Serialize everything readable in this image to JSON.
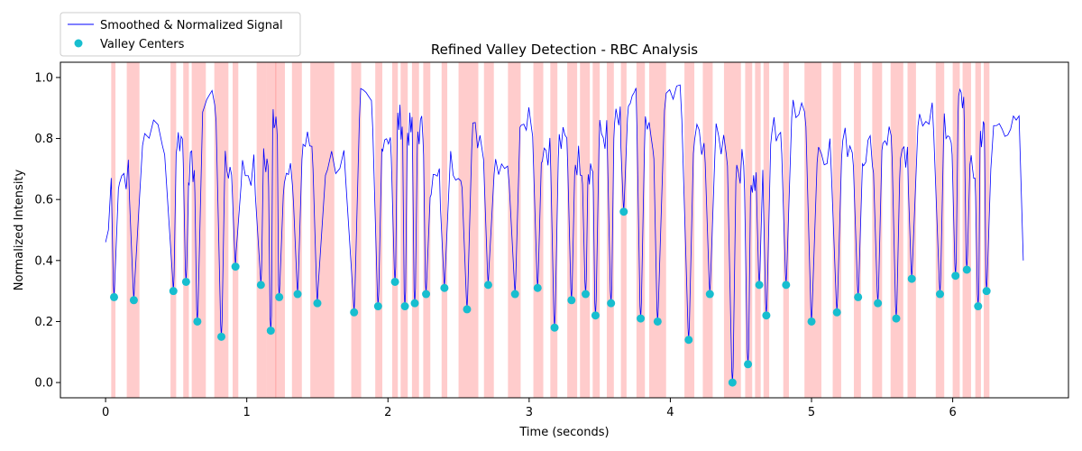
{
  "chart_data": {
    "type": "line",
    "title": "Refined Valley Detection - RBC Analysis",
    "xlabel": "Time (seconds)",
    "ylabel": "Normalized Intensity",
    "xlim": [
      -0.32,
      6.82
    ],
    "ylim": [
      -0.05,
      1.05
    ],
    "xticks": [
      0,
      1,
      2,
      3,
      4,
      5,
      6
    ],
    "xtick_labels": [
      "0",
      "1",
      "2",
      "3",
      "4",
      "5",
      "6"
    ],
    "yticks": [
      0.0,
      0.2,
      0.4,
      0.6,
      0.8,
      1.0
    ],
    "ytick_labels": [
      "0.0",
      "0.2",
      "0.4",
      "0.6",
      "0.8",
      "1.0"
    ],
    "grid": false,
    "legend": {
      "location": "upper-left",
      "entries": [
        "Smoothed & Normalized Signal",
        "Valley Centers"
      ]
    },
    "colors": {
      "signal": "#0000ff",
      "valley_marker": "#17becf",
      "valley_region": "#ff9999"
    },
    "series": [
      {
        "name": "Smoothed & Normalized Signal",
        "kind": "line",
        "x_range": [
          0,
          6.5
        ]
      },
      {
        "name": "Valley Centers",
        "kind": "scatter",
        "x": [
          0.06,
          0.2,
          0.48,
          0.57,
          0.65,
          0.82,
          0.92,
          1.1,
          1.17,
          1.23,
          1.36,
          1.5,
          1.76,
          1.93,
          2.05,
          2.12,
          2.19,
          2.27,
          2.4,
          2.56,
          2.71,
          2.9,
          3.06,
          3.18,
          3.3,
          3.4,
          3.47,
          3.58,
          3.67,
          3.79,
          3.91,
          4.13,
          4.28,
          4.44,
          4.55,
          4.63,
          4.68,
          4.82,
          5.0,
          5.18,
          5.33,
          5.47,
          5.6,
          5.71,
          5.91,
          6.02,
          6.1,
          6.18,
          6.24
        ],
        "y": [
          0.28,
          0.27,
          0.3,
          0.33,
          0.2,
          0.15,
          0.38,
          0.32,
          0.17,
          0.28,
          0.29,
          0.26,
          0.23,
          0.25,
          0.33,
          0.25,
          0.26,
          0.29,
          0.31,
          0.24,
          0.32,
          0.29,
          0.31,
          0.18,
          0.27,
          0.29,
          0.22,
          0.26,
          0.56,
          0.21,
          0.2,
          0.14,
          0.29,
          0.0,
          0.06,
          0.32,
          0.22,
          0.32,
          0.2,
          0.23,
          0.28,
          0.26,
          0.21,
          0.34,
          0.29,
          0.35,
          0.37,
          0.25,
          0.3
        ]
      }
    ],
    "valley_regions": [
      [
        0.04,
        0.07
      ],
      [
        0.15,
        0.24
      ],
      [
        0.46,
        0.5
      ],
      [
        0.55,
        0.59
      ],
      [
        0.61,
        0.71
      ],
      [
        0.77,
        0.87
      ],
      [
        0.9,
        0.94
      ],
      [
        1.07,
        1.14
      ],
      [
        1.14,
        1.21
      ],
      [
        1.2,
        1.27
      ],
      [
        1.32,
        1.39
      ],
      [
        1.45,
        1.62
      ],
      [
        1.74,
        1.81
      ],
      [
        1.91,
        1.96
      ],
      [
        2.03,
        2.07
      ],
      [
        2.09,
        2.14
      ],
      [
        2.17,
        2.22
      ],
      [
        2.25,
        2.3
      ],
      [
        2.38,
        2.42
      ],
      [
        2.5,
        2.64
      ],
      [
        2.68,
        2.75
      ],
      [
        2.85,
        2.94
      ],
      [
        3.03,
        3.1
      ],
      [
        3.15,
        3.2
      ],
      [
        3.27,
        3.34
      ],
      [
        3.36,
        3.43
      ],
      [
        3.45,
        3.5
      ],
      [
        3.55,
        3.6
      ],
      [
        3.65,
        3.69
      ],
      [
        3.76,
        3.82
      ],
      [
        3.85,
        3.97
      ],
      [
        4.1,
        4.17
      ],
      [
        4.23,
        4.3
      ],
      [
        4.38,
        4.5
      ],
      [
        4.53,
        4.58
      ],
      [
        4.6,
        4.64
      ],
      [
        4.66,
        4.7
      ],
      [
        4.8,
        4.84
      ],
      [
        4.95,
        5.07
      ],
      [
        5.15,
        5.21
      ],
      [
        5.3,
        5.35
      ],
      [
        5.43,
        5.5
      ],
      [
        5.56,
        5.65
      ],
      [
        5.68,
        5.74
      ],
      [
        5.88,
        5.94
      ],
      [
        6.0,
        6.05
      ],
      [
        6.07,
        6.13
      ],
      [
        6.16,
        6.2
      ],
      [
        6.22,
        6.26
      ]
    ]
  }
}
